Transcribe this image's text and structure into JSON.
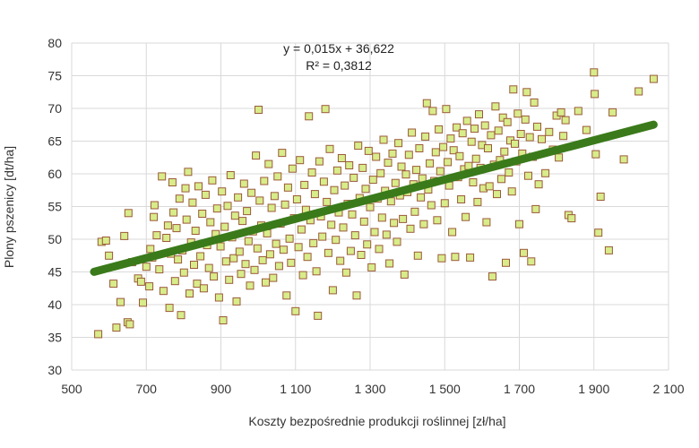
{
  "chart_data": {
    "type": "scatter",
    "xlabel": "Koszty bezpośrednie produkcji roślinnej [zł/ha]",
    "ylabel": "Plony  pszenicy [dt/ha]",
    "xlim": [
      500,
      2100
    ],
    "ylim": [
      30,
      80
    ],
    "x_ticks": [
      500,
      700,
      900,
      1100,
      1300,
      1500,
      1700,
      1900,
      2100
    ],
    "x_tick_labels": [
      "500",
      "700",
      "900",
      "1 100",
      "1 300",
      "1 500",
      "1 700",
      "1 900",
      "2 100"
    ],
    "y_ticks": [
      30,
      35,
      40,
      45,
      50,
      55,
      60,
      65,
      70,
      75,
      80
    ],
    "y_tick_labels": [
      "30",
      "35",
      "40",
      "45",
      "50",
      "55",
      "60",
      "65",
      "70",
      "75",
      "80"
    ],
    "grid": true,
    "legend": "none",
    "equation": "y = 0,015x + 36,622",
    "r_squared": "R² = 0,3812",
    "trendline": {
      "slope": 0.015,
      "intercept": 36.622,
      "x_range": [
        560,
        2060
      ],
      "color": "#3a7a1a"
    },
    "marker": {
      "fill": "#d8ec8a",
      "stroke": "#9b5a3a"
    },
    "points": [
      [
        571,
        35.5
      ],
      [
        580,
        49.6
      ],
      [
        592,
        49.8
      ],
      [
        600,
        47.5
      ],
      [
        612,
        43.2
      ],
      [
        620,
        36.5
      ],
      [
        631,
        40.4
      ],
      [
        641,
        50.5
      ],
      [
        650,
        37.3
      ],
      [
        652,
        54
      ],
      [
        656,
        37
      ],
      [
        662,
        46.5
      ],
      [
        678,
        44
      ],
      [
        686,
        43.5
      ],
      [
        691,
        40.3
      ],
      [
        700,
        45.8
      ],
      [
        708,
        42.8
      ],
      [
        711,
        48.5
      ],
      [
        716,
        47.2
      ],
      [
        720,
        53.4
      ],
      [
        722,
        55.2
      ],
      [
        728,
        50.6
      ],
      [
        735,
        45.4
      ],
      [
        742,
        59.6
      ],
      [
        746,
        42.1
      ],
      [
        754,
        50.2
      ],
      [
        758,
        52.1
      ],
      [
        762,
        39.5
      ],
      [
        766,
        47.8
      ],
      [
        770,
        58.7
      ],
      [
        773,
        54.1
      ],
      [
        777,
        43.6
      ],
      [
        781,
        51.7
      ],
      [
        785,
        46.9
      ],
      [
        789,
        56.2
      ],
      [
        793,
        38.4
      ],
      [
        797,
        48.3
      ],
      [
        801,
        44.9
      ],
      [
        805,
        57.8
      ],
      [
        808,
        53
      ],
      [
        812,
        60.3
      ],
      [
        816,
        41.7
      ],
      [
        820,
        49.5
      ],
      [
        824,
        55.6
      ],
      [
        828,
        46.1
      ],
      [
        832,
        51.3
      ],
      [
        836,
        43.2
      ],
      [
        840,
        58.1
      ],
      [
        845,
        47.4
      ],
      [
        850,
        53.9
      ],
      [
        854,
        42.5
      ],
      [
        859,
        56.8
      ],
      [
        863,
        49.1
      ],
      [
        868,
        45.6
      ],
      [
        872,
        52.6
      ],
      [
        877,
        59
      ],
      [
        881,
        44.3
      ],
      [
        886,
        50.8
      ],
      [
        890,
        54.7
      ],
      [
        895,
        41.1
      ],
      [
        899,
        48.9
      ],
      [
        903,
        57.3
      ],
      [
        906,
        37.6
      ],
      [
        910,
        51.9
      ],
      [
        914,
        46.6
      ],
      [
        918,
        55.1
      ],
      [
        922,
        43.8
      ],
      [
        926,
        59.8
      ],
      [
        930,
        50.3
      ],
      [
        934,
        47.1
      ],
      [
        938,
        53.6
      ],
      [
        942,
        40.5
      ],
      [
        946,
        56.4
      ],
      [
        950,
        48.1
      ],
      [
        954,
        44.7
      ],
      [
        958,
        52.8
      ],
      [
        962,
        58.5
      ],
      [
        966,
        46.2
      ],
      [
        970,
        54.3
      ],
      [
        974,
        49.7
      ],
      [
        978,
        42.9
      ],
      [
        982,
        57.1
      ],
      [
        986,
        51.2
      ],
      [
        990,
        45.3
      ],
      [
        994,
        62.8
      ],
      [
        998,
        48.6
      ],
      [
        1001,
        69.8
      ],
      [
        1004,
        55.9
      ],
      [
        1008,
        52.1
      ],
      [
        1012,
        46.8
      ],
      [
        1016,
        58.9
      ],
      [
        1020,
        43.4
      ],
      [
        1024,
        50.9
      ],
      [
        1028,
        61.5
      ],
      [
        1032,
        47.7
      ],
      [
        1036,
        54.8
      ],
      [
        1040,
        44.1
      ],
      [
        1044,
        56.6
      ],
      [
        1048,
        49.3
      ],
      [
        1052,
        59.6
      ],
      [
        1056,
        45.9
      ],
      [
        1060,
        52.4
      ],
      [
        1064,
        63.2
      ],
      [
        1068,
        48.4
      ],
      [
        1072,
        55.3
      ],
      [
        1076,
        41.4
      ],
      [
        1080,
        57.9
      ],
      [
        1084,
        50.1
      ],
      [
        1088,
        46.4
      ],
      [
        1092,
        60.8
      ],
      [
        1096,
        53.2
      ],
      [
        1100,
        39
      ],
      [
        1104,
        56.1
      ],
      [
        1108,
        48.8
      ],
      [
        1112,
        62.1
      ],
      [
        1116,
        51.5
      ],
      [
        1120,
        44.5
      ],
      [
        1124,
        58.3
      ],
      [
        1128,
        54.5
      ],
      [
        1132,
        47.3
      ],
      [
        1136,
        68.8
      ],
      [
        1140,
        52.9
      ],
      [
        1144,
        60.2
      ],
      [
        1148,
        49.4
      ],
      [
        1152,
        56.9
      ],
      [
        1156,
        45.1
      ],
      [
        1160,
        38.3
      ],
      [
        1164,
        61.9
      ],
      [
        1168,
        53.5
      ],
      [
        1172,
        50.4
      ],
      [
        1176,
        58.8
      ],
      [
        1180,
        69.9
      ],
      [
        1184,
        55.7
      ],
      [
        1188,
        47.9
      ],
      [
        1192,
        63.8
      ],
      [
        1196,
        52.2
      ],
      [
        1200,
        42.2
      ],
      [
        1204,
        57.5
      ],
      [
        1208,
        49.9
      ],
      [
        1212,
        60.5
      ],
      [
        1216,
        54.1
      ],
      [
        1220,
        46.7
      ],
      [
        1224,
        62.4
      ],
      [
        1228,
        51.8
      ],
      [
        1232,
        58.2
      ],
      [
        1236,
        44.9
      ],
      [
        1240,
        55.4
      ],
      [
        1244,
        61.3
      ],
      [
        1248,
        48.2
      ],
      [
        1252,
        53.8
      ],
      [
        1256,
        59.4
      ],
      [
        1260,
        50.6
      ],
      [
        1264,
        41.4
      ],
      [
        1268,
        64.3
      ],
      [
        1272,
        56.3
      ],
      [
        1276,
        47.6
      ],
      [
        1280,
        60.9
      ],
      [
        1284,
        52.7
      ],
      [
        1288,
        57.7
      ],
      [
        1292,
        49.2
      ],
      [
        1296,
        63.5
      ],
      [
        1300,
        54.9
      ],
      [
        1304,
        45.7
      ],
      [
        1308,
        59.1
      ],
      [
        1312,
        51.1
      ],
      [
        1316,
        62.6
      ],
      [
        1320,
        56.2
      ],
      [
        1324,
        48.5
      ],
      [
        1328,
        60.1
      ],
      [
        1332,
        53.3
      ],
      [
        1336,
        65.2
      ],
      [
        1340,
        57.4
      ],
      [
        1344,
        50.7
      ],
      [
        1348,
        61.7
      ],
      [
        1352,
        46.3
      ],
      [
        1356,
        55.8
      ],
      [
        1360,
        63.1
      ],
      [
        1364,
        52.5
      ],
      [
        1368,
        58.6
      ],
      [
        1372,
        49.6
      ],
      [
        1376,
        64.7
      ],
      [
        1380,
        56.7
      ],
      [
        1384,
        61.1
      ],
      [
        1388,
        53.1
      ],
      [
        1392,
        44.6
      ],
      [
        1396,
        59.9
      ],
      [
        1400,
        57.2
      ],
      [
        1404,
        62.9
      ],
      [
        1408,
        51.6
      ],
      [
        1412,
        66.3
      ],
      [
        1416,
        58.4
      ],
      [
        1420,
        54.2
      ],
      [
        1424,
        60.6
      ],
      [
        1428,
        47.5
      ],
      [
        1432,
        63.9
      ],
      [
        1436,
        56.4
      ],
      [
        1440,
        59.3
      ],
      [
        1444,
        52.3
      ],
      [
        1448,
        65.7
      ],
      [
        1452,
        70.8
      ],
      [
        1456,
        57.6
      ],
      [
        1460,
        61.6
      ],
      [
        1464,
        55.2
      ],
      [
        1468,
        69.6
      ],
      [
        1472,
        58.9
      ],
      [
        1476,
        63.3
      ],
      [
        1480,
        52.9
      ],
      [
        1484,
        66.8
      ],
      [
        1488,
        60.4
      ],
      [
        1492,
        47.1
      ],
      [
        1496,
        64.1
      ],
      [
        1500,
        55.5
      ],
      [
        1504,
        69.9
      ],
      [
        1508,
        61.8
      ],
      [
        1512,
        58.2
      ],
      [
        1516,
        65.4
      ],
      [
        1520,
        51.1
      ],
      [
        1524,
        63.6
      ],
      [
        1528,
        47.3
      ],
      [
        1532,
        67.1
      ],
      [
        1536,
        59.5
      ],
      [
        1540,
        62.7
      ],
      [
        1544,
        56.1
      ],
      [
        1548,
        66.2
      ],
      [
        1552,
        60.7
      ],
      [
        1556,
        53.4
      ],
      [
        1560,
        68.1
      ],
      [
        1564,
        61.2
      ],
      [
        1568,
        47.2
      ],
      [
        1572,
        64.9
      ],
      [
        1576,
        58.7
      ],
      [
        1580,
        66.9
      ],
      [
        1584,
        62.3
      ],
      [
        1588,
        55.7
      ],
      [
        1592,
        69.1
      ],
      [
        1596,
        60.9
      ],
      [
        1600,
        64.4
      ],
      [
        1604,
        57.8
      ],
      [
        1608,
        67.4
      ],
      [
        1612,
        52.6
      ],
      [
        1616,
        63.9
      ],
      [
        1620,
        58.1
      ],
      [
        1624,
        65.9
      ],
      [
        1628,
        44.3
      ],
      [
        1632,
        61.4
      ],
      [
        1636,
        70.3
      ],
      [
        1640,
        56.9
      ],
      [
        1644,
        66.6
      ],
      [
        1648,
        62.1
      ],
      [
        1652,
        59.2
      ],
      [
        1656,
        68.6
      ],
      [
        1660,
        63.4
      ],
      [
        1664,
        46.4
      ],
      [
        1668,
        67.9
      ],
      [
        1672,
        60.2
      ],
      [
        1676,
        65.1
      ],
      [
        1680,
        57.3
      ],
      [
        1684,
        72.9
      ],
      [
        1688,
        64.6
      ],
      [
        1692,
        61.9
      ],
      [
        1696,
        69.2
      ],
      [
        1700,
        52.3
      ],
      [
        1704,
        66.1
      ],
      [
        1708,
        63.1
      ],
      [
        1712,
        47.9
      ],
      [
        1716,
        68.3
      ],
      [
        1720,
        72.5
      ],
      [
        1724,
        59.7
      ],
      [
        1728,
        65.6
      ],
      [
        1732,
        46.6
      ],
      [
        1736,
        62.6
      ],
      [
        1740,
        70.9
      ],
      [
        1744,
        54.6
      ],
      [
        1748,
        67.2
      ],
      [
        1752,
        58.4
      ],
      [
        1760,
        65.3
      ],
      [
        1770,
        60.1
      ],
      [
        1780,
        66.4
      ],
      [
        1790,
        63.7
      ],
      [
        1800,
        68.9
      ],
      [
        1806,
        62.5
      ],
      [
        1812,
        69.4
      ],
      [
        1818,
        65.8
      ],
      [
        1824,
        68.2
      ],
      [
        1832,
        53.7
      ],
      [
        1840,
        53.2
      ],
      [
        1858,
        69.6
      ],
      [
        1880,
        66.7
      ],
      [
        1900,
        75.5
      ],
      [
        1902,
        72.2
      ],
      [
        1905,
        63
      ],
      [
        1912,
        51
      ],
      [
        1918,
        56.5
      ],
      [
        1940,
        48.3
      ],
      [
        1950,
        69.4
      ],
      [
        1980,
        62.2
      ],
      [
        2020,
        72.6
      ],
      [
        2060,
        74.5
      ]
    ]
  }
}
